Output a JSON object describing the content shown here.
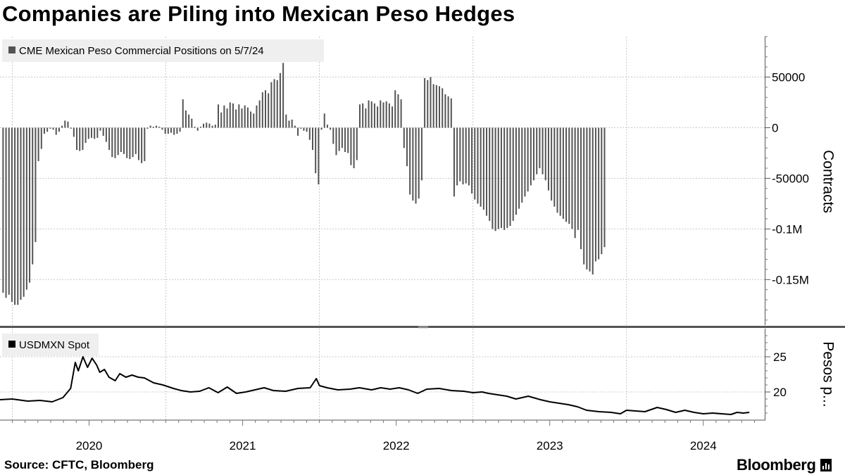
{
  "title": "Companies are Piling into Mexican Peso Hedges",
  "source": "Source: CFTC, Bloomberg",
  "brand": "Bloomberg",
  "colors": {
    "bars": "#545454",
    "line": "#000000",
    "grid": "#c8c8c8",
    "legend_bg": "#efefef"
  },
  "chart_data": [
    {
      "type": "bar",
      "name": "CME Mexican Peso Commercial Positions on 5/7/24",
      "legend": "CME Mexican Peso Commercial Positions on 5/7/24",
      "ylabel": "Contracts",
      "ylim": [
        -195000,
        90000
      ],
      "yticks": [
        50000,
        0,
        -50000,
        -100000,
        -150000
      ],
      "ytick_labels": [
        "50000",
        "0",
        "-50000",
        "-0.1M",
        "-0.15M"
      ],
      "x_start": 2019.44,
      "x_step": 0.0192,
      "values": [
        -163000,
        -168000,
        -165000,
        -172000,
        -175000,
        -175000,
        -170000,
        -167000,
        -160000,
        -153000,
        -135000,
        -113000,
        -33000,
        -21000,
        -6000,
        -4000,
        -1000,
        -2000,
        -7000,
        -4000,
        2000,
        7000,
        6000,
        -1000,
        -9000,
        -22000,
        -23000,
        -22000,
        -15000,
        -11000,
        -10000,
        -11000,
        -10000,
        -3000,
        -8000,
        -14000,
        -22000,
        -29000,
        -30000,
        -27000,
        -24000,
        -26000,
        -30000,
        -31000,
        -29000,
        -26000,
        -32000,
        -35000,
        -33000,
        -1000,
        2000,
        1000,
        2000,
        1000,
        -2000,
        -6000,
        -6000,
        -5000,
        -7000,
        -6000,
        -4000,
        28000,
        17000,
        13000,
        9000,
        1000,
        -3000,
        1000,
        4000,
        5000,
        4000,
        2000,
        3000,
        23000,
        15000,
        22000,
        19000,
        25000,
        24000,
        18000,
        23000,
        19000,
        22000,
        20000,
        16000,
        14000,
        22000,
        27000,
        35000,
        37000,
        34000,
        45000,
        48000,
        47000,
        54000,
        64000,
        13000,
        7000,
        8000,
        2000,
        -8000,
        -1000,
        -3000,
        -4000,
        -12000,
        -22000,
        -45000,
        -56000,
        -2000,
        14000,
        3000,
        -2000,
        -16000,
        -27000,
        -23000,
        -20000,
        -24000,
        -25000,
        -37000,
        -40000,
        -32000,
        23000,
        24000,
        19000,
        27000,
        26000,
        24000,
        21000,
        27000,
        25000,
        26000,
        24000,
        21000,
        37000,
        33000,
        28000,
        -20000,
        -38000,
        -66000,
        -72000,
        -75000,
        -70000,
        -52000,
        49000,
        47000,
        50000,
        43000,
        42000,
        41000,
        39000,
        33000,
        31000,
        29000,
        -68000,
        -57000,
        -53000,
        -56000,
        -55000,
        -57000,
        -65000,
        -71000,
        -75000,
        -78000,
        -81000,
        -87000,
        -92000,
        -100000,
        -102000,
        -100000,
        -99000,
        -101000,
        -99000,
        -97000,
        -92000,
        -86000,
        -80000,
        -74000,
        -68000,
        -63000,
        -57000,
        -52000,
        -46000,
        -40000,
        -46000,
        -52000,
        -62000,
        -72000,
        -78000,
        -84000,
        -87000,
        -90000,
        -93000,
        -95000,
        -100000,
        -109000,
        -101000,
        -120000,
        -135000,
        -140000,
        -142000,
        -145000,
        -132000,
        -130000,
        -125000,
        -118000
      ]
    },
    {
      "type": "line",
      "name": "USDMXN Spot",
      "legend": "USDMXN Spot",
      "ylabel": "Pesos p...",
      "ylim": [
        16,
        29
      ],
      "yticks": [
        25,
        20
      ],
      "ytick_labels": [
        "25",
        "20"
      ],
      "x": [
        2019.42,
        2019.5,
        2019.6,
        2019.68,
        2019.76,
        2019.83,
        2019.88,
        2019.91,
        2019.93,
        2019.96,
        2019.99,
        2020.02,
        2020.05,
        2020.07,
        2020.1,
        2020.13,
        2020.17,
        2020.2,
        2020.24,
        2020.28,
        2020.32,
        2020.36,
        2020.42,
        2020.48,
        2020.55,
        2020.6,
        2020.66,
        2020.72,
        2020.78,
        2020.84,
        2020.9,
        2020.96,
        2021.02,
        2021.08,
        2021.14,
        2021.2,
        2021.28,
        2021.36,
        2021.44,
        2021.48,
        2021.5,
        2021.55,
        2021.62,
        2021.7,
        2021.76,
        2021.84,
        2021.9,
        2021.96,
        2022.02,
        2022.08,
        2022.14,
        2022.2,
        2022.28,
        2022.36,
        2022.44,
        2022.5,
        2022.56,
        2022.6,
        2022.66,
        2022.72,
        2022.78,
        2022.86,
        2022.94,
        2023.0,
        2023.06,
        2023.12,
        2023.18,
        2023.24,
        2023.32,
        2023.4,
        2023.46,
        2023.5,
        2023.56,
        2023.62,
        2023.7,
        2023.76,
        2023.82,
        2023.88,
        2023.94,
        2024.0,
        2024.06,
        2024.12,
        2024.18,
        2024.22,
        2024.26,
        2024.3
      ],
      "values": [
        18.9,
        19.0,
        18.7,
        18.8,
        18.6,
        19.2,
        20.5,
        24.2,
        23.0,
        25.0,
        23.5,
        24.8,
        23.8,
        22.8,
        23.2,
        22.1,
        21.6,
        22.6,
        22.1,
        22.4,
        22.1,
        22.0,
        21.3,
        21.0,
        20.5,
        20.2,
        20.0,
        20.1,
        20.6,
        19.9,
        20.7,
        19.8,
        20.0,
        20.3,
        20.6,
        20.2,
        20.1,
        20.5,
        20.6,
        21.9,
        20.9,
        20.6,
        20.3,
        20.4,
        20.6,
        20.3,
        20.6,
        20.4,
        20.6,
        20.3,
        19.8,
        20.4,
        20.5,
        20.2,
        20.1,
        19.9,
        20.0,
        19.8,
        19.6,
        19.4,
        19.0,
        19.4,
        18.9,
        18.6,
        18.4,
        18.2,
        17.9,
        17.4,
        17.2,
        17.1,
        16.9,
        17.4,
        17.3,
        17.2,
        17.8,
        17.5,
        17.1,
        17.4,
        17.1,
        16.9,
        17.0,
        16.9,
        16.8,
        17.1,
        17.0,
        17.1
      ]
    }
  ],
  "x_axis": {
    "xlim": [
      2019.42,
      2024.4
    ],
    "ticks": [
      2020,
      2021,
      2022,
      2023,
      2024
    ],
    "tick_labels": [
      "2020",
      "2021",
      "2022",
      "2023",
      "2024"
    ]
  }
}
